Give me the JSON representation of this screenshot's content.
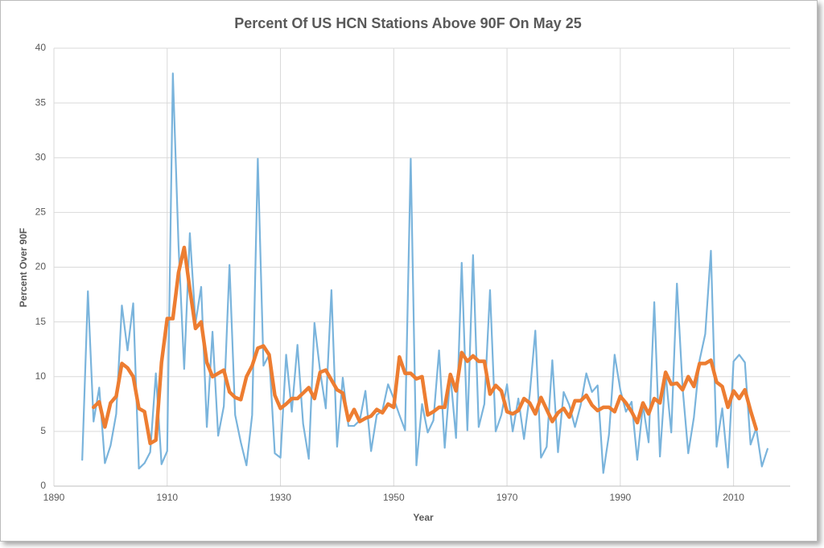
{
  "chart_data": {
    "type": "line",
    "title": "Percent Of US HCN Stations Above 90F On May 25",
    "x_label": "Year",
    "y_label": "Percent Over 90F",
    "x": [
      1895,
      1896,
      1897,
      1898,
      1899,
      1900,
      1901,
      1902,
      1903,
      1904,
      1905,
      1906,
      1907,
      1908,
      1909,
      1910,
      1911,
      1912,
      1913,
      1914,
      1915,
      1916,
      1917,
      1918,
      1919,
      1920,
      1921,
      1922,
      1923,
      1924,
      1925,
      1926,
      1927,
      1928,
      1929,
      1930,
      1931,
      1932,
      1933,
      1934,
      1935,
      1936,
      1937,
      1938,
      1939,
      1940,
      1941,
      1942,
      1943,
      1944,
      1945,
      1946,
      1947,
      1948,
      1949,
      1950,
      1951,
      1952,
      1953,
      1954,
      1955,
      1956,
      1957,
      1958,
      1959,
      1960,
      1961,
      1962,
      1963,
      1964,
      1965,
      1966,
      1967,
      1968,
      1969,
      1970,
      1971,
      1972,
      1973,
      1974,
      1975,
      1976,
      1977,
      1978,
      1979,
      1980,
      1981,
      1982,
      1983,
      1984,
      1985,
      1986,
      1987,
      1988,
      1989,
      1990,
      1991,
      1992,
      1993,
      1994,
      1995,
      1996,
      1997,
      1998,
      1999,
      2000,
      2001,
      2002,
      2003,
      2004,
      2005,
      2006,
      2007,
      2008,
      2009,
      2010,
      2011,
      2012,
      2013,
      2014,
      2015,
      2016
    ],
    "series": [
      {
        "color": "#7ab4dc",
        "width": 2.2,
        "values": [
          2.4,
          17.8,
          5.9,
          9.0,
          2.1,
          3.7,
          6.6,
          16.5,
          12.4,
          16.7,
          1.6,
          2.1,
          3.1,
          10.3,
          2.0,
          3.2,
          37.7,
          22.0,
          10.7,
          23.1,
          14.9,
          18.2,
          5.4,
          14.1,
          4.6,
          7.3,
          20.2,
          6.5,
          4.0,
          1.9,
          6.5,
          29.9,
          11.0,
          12.0,
          3.0,
          2.6,
          12.0,
          6.8,
          12.9,
          5.7,
          2.5,
          14.9,
          10.5,
          7.1,
          17.9,
          3.6,
          9.9,
          5.5,
          5.5,
          6.0,
          8.7,
          3.2,
          6.5,
          6.9,
          9.3,
          8.0,
          6.5,
          5.1,
          29.9,
          1.9,
          7.5,
          4.9,
          6.0,
          12.4,
          3.5,
          10.2,
          4.4,
          20.4,
          5.1,
          21.1,
          5.4,
          7.5,
          17.9,
          5.0,
          6.5,
          9.3,
          5.0,
          8.0,
          4.3,
          8.3,
          14.2,
          2.6,
          3.6,
          11.5,
          3.1,
          8.6,
          7.4,
          5.4,
          7.4,
          10.3,
          8.6,
          9.2,
          1.2,
          4.7,
          12.0,
          8.8,
          6.8,
          7.7,
          2.4,
          7.4,
          4.0,
          16.8,
          2.7,
          10.3,
          4.9,
          18.5,
          9.0,
          3.0,
          6.3,
          11.5,
          13.9,
          21.5,
          3.6,
          7.1,
          1.7,
          11.4,
          12.0,
          11.3,
          3.8,
          5.3,
          1.8,
          3.4
        ]
      },
      {
        "color": "#ed7d31",
        "width": 4.5,
        "values": [
          null,
          null,
          7.2,
          7.7,
          5.4,
          7.6,
          8.2,
          11.2,
          10.8,
          10.0,
          7.1,
          6.8,
          3.9,
          4.2,
          11.3,
          15.3,
          15.3,
          19.5,
          21.8,
          18.0,
          14.4,
          15.0,
          11.3,
          10.0,
          10.3,
          10.6,
          8.6,
          8.1,
          7.9,
          10.0,
          11.0,
          12.6,
          12.8,
          12.0,
          8.3,
          7.1,
          7.5,
          8.0,
          8.0,
          8.5,
          9.0,
          8.0,
          10.4,
          10.6,
          9.7,
          8.8,
          8.5,
          6.0,
          7.0,
          5.9,
          6.2,
          6.4,
          7.0,
          6.7,
          7.5,
          7.2,
          11.8,
          10.3,
          10.3,
          9.8,
          10.0,
          6.5,
          6.8,
          7.2,
          7.2,
          10.2,
          8.7,
          12.2,
          11.4,
          11.9,
          11.4,
          11.4,
          8.4,
          9.2,
          8.7,
          6.8,
          6.6,
          6.9,
          8.0,
          7.6,
          6.6,
          8.1,
          7.0,
          5.9,
          6.7,
          7.1,
          6.3,
          7.8,
          7.8,
          8.3,
          7.4,
          6.9,
          7.2,
          7.2,
          6.8,
          8.2,
          7.6,
          6.8,
          5.8,
          7.6,
          6.6,
          8.0,
          7.6,
          10.4,
          9.3,
          9.4,
          8.8,
          10.0,
          9.1,
          11.2,
          11.2,
          11.5,
          9.5,
          9.1,
          7.2,
          8.7,
          8.0,
          8.8,
          6.9,
          5.2,
          null,
          null
        ]
      }
    ],
    "xlim": [
      1890,
      2020
    ],
    "xticks": [
      1890,
      1910,
      1930,
      1950,
      1970,
      1990,
      2010
    ],
    "ylim": [
      0,
      40
    ],
    "yticks": [
      0,
      5,
      10,
      15,
      20,
      25,
      30,
      35,
      40
    ],
    "grid": true
  }
}
